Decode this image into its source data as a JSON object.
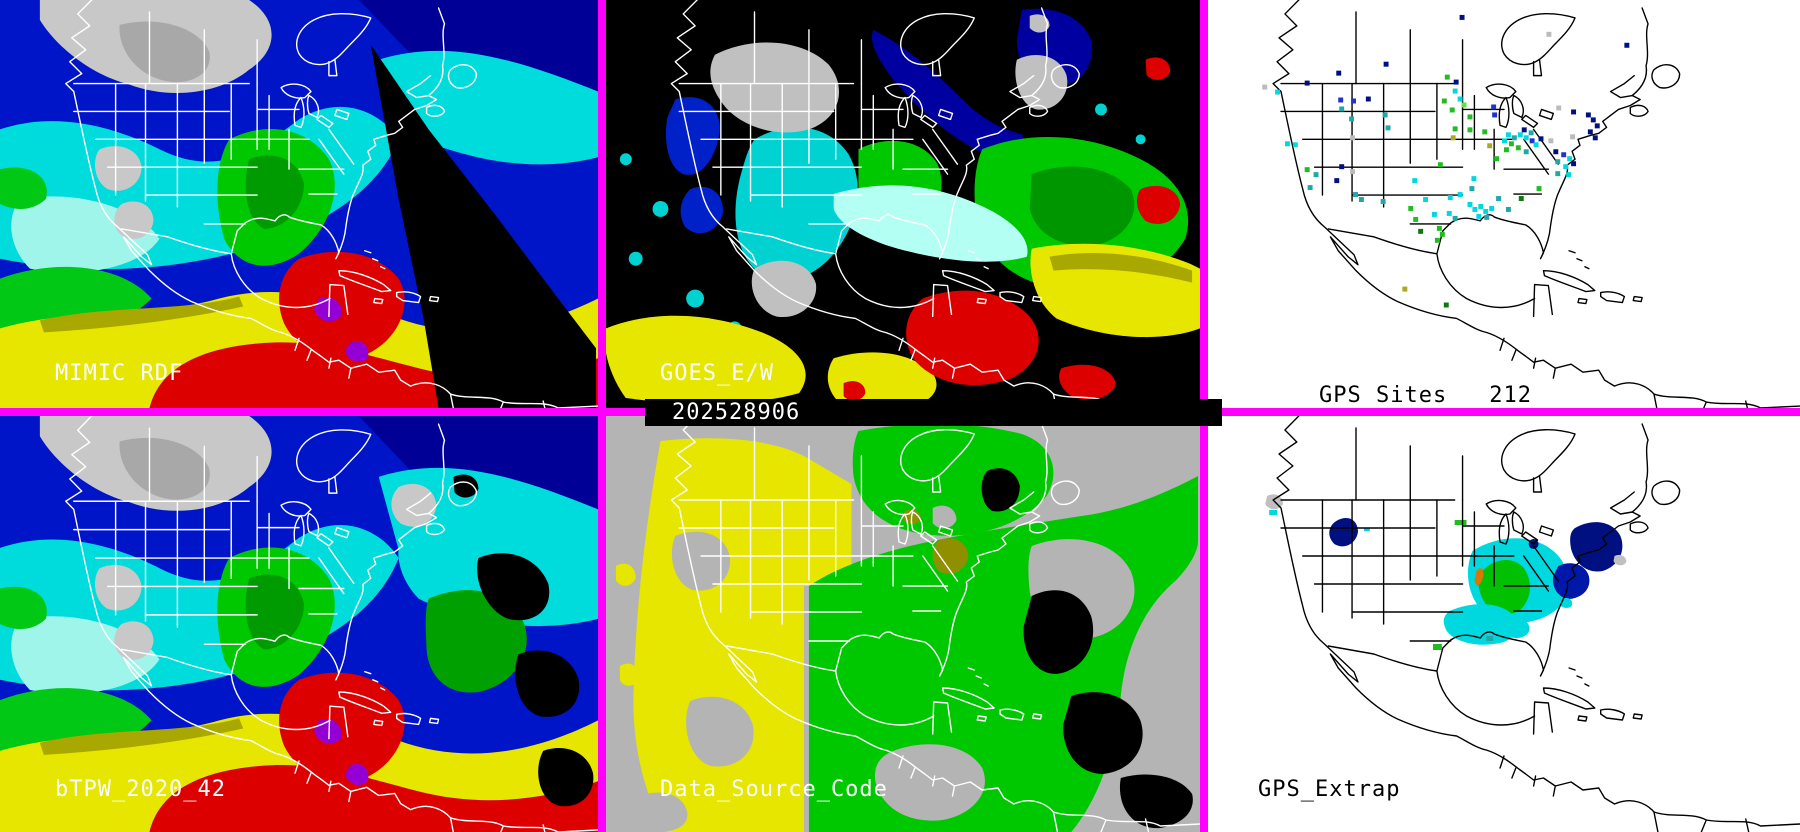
{
  "timestamp_bar": {
    "value": "202528906"
  },
  "panels": {
    "mimic_rdf": {
      "label": "MIMIC RDF"
    },
    "goes_ew": {
      "label": "GOES_E/W"
    },
    "gps_sites": {
      "label": "GPS Sites",
      "count": "212"
    },
    "btpw": {
      "label": "bTPW_2020_42"
    },
    "data_source_code": {
      "label": "Data_Source_Code"
    },
    "gps_extrap": {
      "label": "GPS_Extrap"
    }
  },
  "colors": {
    "panel_border": "#FF00FF",
    "outline_on_color_panels": "#FFFFFF",
    "outline_on_gps_panels": "#000000",
    "tpw_scale": [
      "#000080",
      "#0014C8",
      "#00DCDC",
      "#A0F5EA",
      "#00C800",
      "#009B00",
      "#E6E600",
      "#A8A800",
      "#DC0000",
      "#9400D3",
      "#C8C8C8"
    ],
    "data_source_classes": {
      "background": "#B4B4B4",
      "yellow": "#E6E600",
      "green": "#00C800",
      "olive": "#8F8F00",
      "black": "#000000"
    }
  },
  "dot_palette": {
    "nv": "#001080",
    "bl": "#2233CC",
    "te": "#20A8A8",
    "cy": "#00D8E0",
    "gr": "#22BB22",
    "dg": "#0E7A0E",
    "lg": "#66DD44",
    "ol": "#AAAA22",
    "gy": "#BBBBBB"
  },
  "gps_sites_points": [
    [
      255,
      15,
      "nv"
    ],
    [
      422,
      43,
      "nv"
    ],
    [
      178,
      62,
      "nv"
    ],
    [
      130,
      71,
      "nv"
    ],
    [
      98,
      81,
      "nv"
    ],
    [
      343,
      32,
      "gy"
    ],
    [
      55,
      85,
      "gy"
    ],
    [
      68,
      90,
      "cy"
    ],
    [
      132,
      98,
      "bl"
    ],
    [
      145,
      99,
      "bl"
    ],
    [
      160,
      97,
      "nv"
    ],
    [
      133,
      107,
      "te"
    ],
    [
      143,
      117,
      "te"
    ],
    [
      177,
      113,
      "te"
    ],
    [
      180,
      126,
      "te"
    ],
    [
      240,
      75,
      "gr"
    ],
    [
      249,
      80,
      "nv"
    ],
    [
      248,
      89,
      "cy"
    ],
    [
      253,
      97,
      "cy"
    ],
    [
      237,
      99,
      "gr"
    ],
    [
      245,
      108,
      "gr"
    ],
    [
      257,
      103,
      "lg"
    ],
    [
      263,
      115,
      "gr"
    ],
    [
      248,
      127,
      "gr"
    ],
    [
      246,
      136,
      "ol"
    ],
    [
      263,
      128,
      "gr"
    ],
    [
      278,
      130,
      "gr"
    ],
    [
      287,
      105,
      "bl"
    ],
    [
      283,
      144,
      "ol"
    ],
    [
      233,
      163,
      "gr"
    ],
    [
      290,
      157,
      "gr"
    ],
    [
      267,
      177,
      "cy"
    ],
    [
      265,
      187,
      "te"
    ],
    [
      298,
      139,
      "cy"
    ],
    [
      302,
      133,
      "cy"
    ],
    [
      305,
      142,
      "gr"
    ],
    [
      308,
      136,
      "te"
    ],
    [
      312,
      146,
      "gr"
    ],
    [
      314,
      133,
      "cy"
    ],
    [
      318,
      128,
      "nv"
    ],
    [
      320,
      136,
      "cy"
    ],
    [
      320,
      150,
      "te"
    ],
    [
      325,
      131,
      "te"
    ],
    [
      326,
      139,
      "bl"
    ],
    [
      330,
      143,
      "cy"
    ],
    [
      335,
      137,
      "nv"
    ],
    [
      300,
      148,
      "gr"
    ],
    [
      368,
      110,
      "nv"
    ],
    [
      383,
      113,
      "nv"
    ],
    [
      388,
      118,
      "nv"
    ],
    [
      392,
      124,
      "nv"
    ],
    [
      385,
      130,
      "nv"
    ],
    [
      390,
      136,
      "nv"
    ],
    [
      353,
      106,
      "gy"
    ],
    [
      367,
      135,
      "gy"
    ],
    [
      345,
      139,
      "gy"
    ],
    [
      288,
      113,
      "bl"
    ],
    [
      350,
      150,
      "nv"
    ],
    [
      358,
      153,
      "bl"
    ],
    [
      364,
      157,
      "cy"
    ],
    [
      352,
      160,
      "te"
    ],
    [
      360,
      165,
      "cy"
    ],
    [
      368,
      162,
      "nv"
    ],
    [
      352,
      172,
      "te"
    ],
    [
      363,
      173,
      "cy"
    ],
    [
      333,
      187,
      "gr"
    ],
    [
      315,
      197,
      "dg"
    ],
    [
      78,
      142,
      "cy"
    ],
    [
      86,
      143,
      "cy"
    ],
    [
      98,
      168,
      "gr"
    ],
    [
      107,
      173,
      "te"
    ],
    [
      101,
      186,
      "te"
    ],
    [
      133,
      165,
      "nv"
    ],
    [
      144,
      170,
      "gy"
    ],
    [
      128,
      179,
      "nv"
    ],
    [
      147,
      193,
      "te"
    ],
    [
      153,
      198,
      "te"
    ],
    [
      175,
      200,
      "te"
    ],
    [
      144,
      136,
      "gy"
    ],
    [
      207,
      179,
      "cy"
    ],
    [
      218,
      198,
      "cy"
    ],
    [
      243,
      196,
      "cy"
    ],
    [
      253,
      193,
      "cy"
    ],
    [
      203,
      207,
      "gr"
    ],
    [
      208,
      218,
      "gr"
    ],
    [
      227,
      213,
      "cy"
    ],
    [
      242,
      212,
      "cy"
    ],
    [
      248,
      217,
      "te"
    ],
    [
      232,
      227,
      "gr"
    ],
    [
      235,
      233,
      "gr"
    ],
    [
      213,
      230,
      "dg"
    ],
    [
      230,
      239,
      "gr"
    ],
    [
      263,
      203,
      "cy"
    ],
    [
      268,
      208,
      "cy"
    ],
    [
      274,
      205,
      "cy"
    ],
    [
      279,
      210,
      "cy"
    ],
    [
      272,
      215,
      "cy"
    ],
    [
      280,
      216,
      "te"
    ],
    [
      285,
      207,
      "cy"
    ],
    [
      292,
      197,
      "te"
    ],
    [
      302,
      208,
      "te"
    ],
    [
      197,
      288,
      "ol"
    ],
    [
      239,
      304,
      "dg"
    ]
  ]
}
